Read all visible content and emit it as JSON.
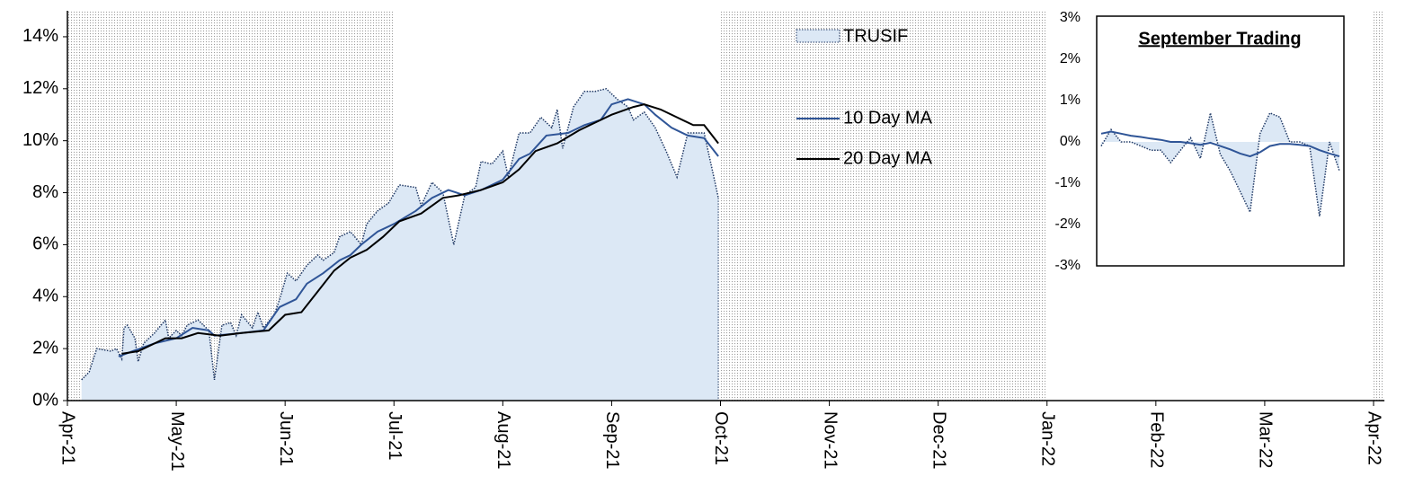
{
  "chart_data": [
    {
      "type": "area-line",
      "xlim": [
        0,
        12.1
      ],
      "xticks": [
        {
          "value": 0,
          "label": "Apr-21"
        },
        {
          "value": 1,
          "label": "May-21"
        },
        {
          "value": 2,
          "label": "Jun-21"
        },
        {
          "value": 3,
          "label": "Jul-21"
        },
        {
          "value": 4,
          "label": "Aug-21"
        },
        {
          "value": 5,
          "label": "Sep-21"
        },
        {
          "value": 6,
          "label": "Oct-21"
        },
        {
          "value": 7,
          "label": "Nov-21"
        },
        {
          "value": 8,
          "label": "Dec-21"
        },
        {
          "value": 9,
          "label": "Jan-22"
        },
        {
          "value": 10,
          "label": "Feb-22"
        },
        {
          "value": 11,
          "label": "Mar-22"
        },
        {
          "value": 12,
          "label": "Apr-22"
        }
      ],
      "ylim": [
        0,
        15
      ],
      "yticks": [
        {
          "value": 0,
          "label": "0%"
        },
        {
          "value": 2,
          "label": "2%"
        },
        {
          "value": 4,
          "label": "4%"
        },
        {
          "value": 6,
          "label": "6%"
        },
        {
          "value": 8,
          "label": "8%"
        },
        {
          "value": 10,
          "label": "10%"
        },
        {
          "value": 12,
          "label": "12%"
        },
        {
          "value": 14,
          "label": "14%"
        }
      ],
      "series": [
        {
          "name": "TRUSIF",
          "color": "#dce8f5",
          "style": "area",
          "x": [
            0.13,
            0.2,
            0.27,
            0.4,
            0.45,
            0.5,
            0.52,
            0.55,
            0.62,
            0.65,
            0.7,
            0.8,
            0.9,
            0.93,
            1.0,
            1.05,
            1.1,
            1.2,
            1.3,
            1.35,
            1.42,
            1.5,
            1.55,
            1.6,
            1.7,
            1.75,
            1.8,
            1.9,
            1.95,
            2.02,
            2.1,
            2.2,
            2.3,
            2.35,
            2.45,
            2.5,
            2.6,
            2.7,
            2.75,
            2.85,
            2.95,
            3.05,
            3.2,
            3.25,
            3.35,
            3.45,
            3.55,
            3.65,
            3.75,
            3.8,
            3.9,
            4.0,
            4.05,
            4.15,
            4.25,
            4.35,
            4.45,
            4.5,
            4.55,
            4.65,
            4.75,
            4.85,
            4.95,
            5.05,
            5.15,
            5.2,
            5.3,
            5.4,
            5.5,
            5.6,
            5.7,
            5.85,
            5.95,
            5.98
          ],
          "values": [
            0.8,
            1.1,
            2.0,
            1.9,
            2.0,
            1.6,
            2.8,
            2.9,
            2.4,
            1.5,
            2.2,
            2.6,
            3.1,
            2.4,
            2.7,
            2.5,
            2.9,
            3.1,
            2.7,
            0.8,
            2.9,
            3.0,
            2.5,
            3.3,
            2.8,
            3.4,
            2.8,
            3.3,
            3.9,
            4.9,
            4.6,
            5.2,
            5.6,
            5.4,
            5.7,
            6.3,
            6.5,
            6.0,
            6.8,
            7.3,
            7.6,
            8.3,
            8.2,
            7.5,
            8.4,
            8.0,
            6.0,
            7.9,
            8.2,
            9.2,
            9.1,
            9.6,
            8.6,
            10.3,
            10.3,
            10.9,
            10.5,
            11.2,
            9.7,
            11.3,
            11.9,
            11.9,
            12.0,
            11.6,
            11.3,
            10.8,
            11.1,
            10.5,
            9.6,
            8.6,
            10.3,
            10.3,
            8.4,
            7.8
          ]
        },
        {
          "name": "10 Day MA",
          "color": "#2f5597",
          "style": "line",
          "x": [
            0.47,
            0.6,
            0.8,
            1.0,
            1.15,
            1.3,
            1.35,
            1.6,
            1.8,
            1.95,
            2.1,
            2.2,
            2.35,
            2.5,
            2.6,
            2.7,
            2.85,
            3.0,
            3.2,
            3.35,
            3.5,
            3.65,
            3.8,
            4.0,
            4.15,
            4.25,
            4.4,
            4.6,
            4.75,
            4.9,
            5.0,
            5.15,
            5.3,
            5.4,
            5.55,
            5.7,
            5.85,
            5.98
          ],
          "values": [
            1.7,
            1.9,
            2.2,
            2.4,
            2.8,
            2.7,
            2.5,
            2.6,
            2.7,
            3.6,
            3.9,
            4.5,
            4.9,
            5.4,
            5.6,
            6.0,
            6.5,
            6.8,
            7.3,
            7.8,
            8.1,
            7.9,
            8.1,
            8.5,
            9.3,
            9.5,
            10.2,
            10.3,
            10.6,
            10.8,
            11.4,
            11.6,
            11.4,
            11.0,
            10.5,
            10.2,
            10.1,
            9.4
          ]
        },
        {
          "name": "20 Day MA",
          "color": "#000000",
          "style": "line",
          "x": [
            0.5,
            0.65,
            0.9,
            1.05,
            1.2,
            1.4,
            1.6,
            1.85,
            2.0,
            2.15,
            2.3,
            2.45,
            2.6,
            2.75,
            2.9,
            3.05,
            3.25,
            3.45,
            3.6,
            3.8,
            4.0,
            4.15,
            4.3,
            4.5,
            4.7,
            4.85,
            5.0,
            5.2,
            5.3,
            5.45,
            5.6,
            5.75,
            5.85,
            5.98
          ],
          "values": [
            1.8,
            1.9,
            2.4,
            2.4,
            2.6,
            2.5,
            2.6,
            2.7,
            3.3,
            3.4,
            4.2,
            5.0,
            5.5,
            5.8,
            6.3,
            6.9,
            7.2,
            7.8,
            7.9,
            8.1,
            8.4,
            8.9,
            9.6,
            9.9,
            10.4,
            10.7,
            11.0,
            11.3,
            11.4,
            11.2,
            10.9,
            10.6,
            10.6,
            9.9
          ]
        }
      ]
    },
    {
      "type": "inset",
      "title": "September Trading",
      "ylim": [
        -3,
        3
      ],
      "yticks": [
        {
          "value": 3,
          "label": "3%"
        },
        {
          "value": 2,
          "label": "2%"
        },
        {
          "value": 1,
          "label": "1%"
        },
        {
          "value": 0,
          "label": "0%"
        },
        {
          "value": -1,
          "label": "-1%"
        },
        {
          "value": -2,
          "label": "-2%"
        },
        {
          "value": -3,
          "label": "-3%"
        }
      ],
      "series": [
        {
          "name": "TRUSIF",
          "color": "#dce8f5",
          "style": "area",
          "values": [
            -0.1,
            0.3,
            0.0,
            0.0,
            -0.1,
            -0.2,
            -0.2,
            -0.5,
            -0.2,
            0.1,
            -0.4,
            0.7,
            -0.3,
            -0.7,
            -1.2,
            -1.7,
            0.2,
            0.7,
            0.6,
            0.0,
            0.0,
            -0.1,
            -1.8,
            0.0,
            -0.7
          ]
        },
        {
          "name": "10 Day MA",
          "color": "#2f5597",
          "style": "line",
          "values": [
            0.2,
            0.25,
            0.2,
            0.15,
            0.12,
            0.08,
            0.05,
            0.0,
            0.0,
            -0.03,
            -0.07,
            -0.02,
            -0.1,
            -0.18,
            -0.28,
            -0.35,
            -0.25,
            -0.1,
            -0.05,
            -0.05,
            -0.07,
            -0.1,
            -0.2,
            -0.28,
            -0.35
          ]
        }
      ]
    }
  ]
}
